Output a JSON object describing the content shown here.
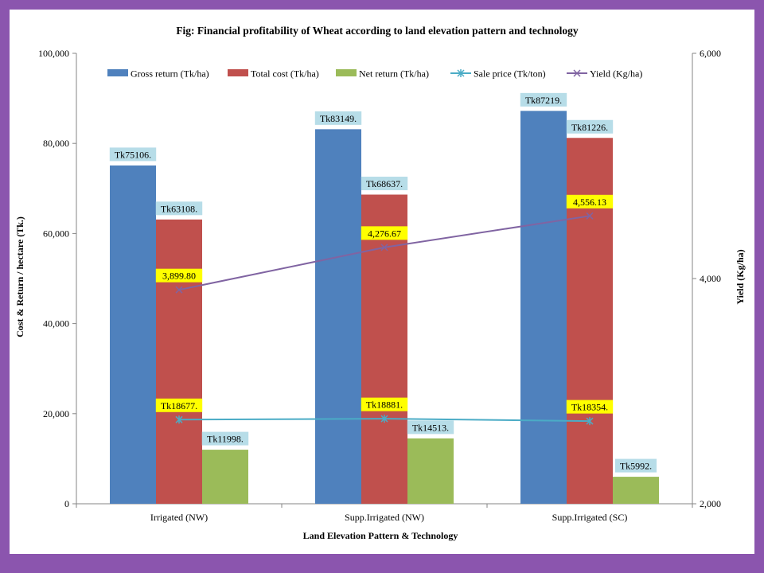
{
  "chart_data": {
    "type": "bar",
    "title": "Fig: Financial profitability of Wheat according to land elevation pattern and technology",
    "xlabel": "Land Elevation Pattern & Technology",
    "ylabel": "Cost & Return / hectare (Tk.)",
    "y2label": "Yield (Kg/ha)",
    "categories": [
      "Irrigated (NW)",
      "Supp.Irrigated (NW)",
      "Supp.Irrigated (SC)"
    ],
    "ylim": [
      0,
      100000
    ],
    "y2lim": [
      2000,
      6000
    ],
    "yticks": [
      "0",
      "20,000",
      "40,000",
      "60,000",
      "80,000",
      "100,000"
    ],
    "y2ticks": [
      "2,000",
      "4,000",
      "6,000"
    ],
    "legend_position": "top",
    "series": [
      {
        "name": "Gross return (Tk/ha)",
        "kind": "bar",
        "axis": "left",
        "color": "#4f81bd",
        "values": [
          75106,
          83149,
          87219
        ],
        "labels": [
          "Tk75106.",
          "Tk83149.",
          "Tk87219."
        ]
      },
      {
        "name": "Total cost (Tk/ha)",
        "kind": "bar",
        "axis": "left",
        "color": "#c0504d",
        "values": [
          63108,
          68637,
          81226
        ],
        "labels": [
          "Tk63108.",
          "Tk68637.",
          "Tk81226."
        ]
      },
      {
        "name": "Net return (Tk/ha)",
        "kind": "bar",
        "axis": "left",
        "color": "#9bbb59",
        "values": [
          11998,
          14513,
          5992
        ],
        "labels": [
          "Tk11998.",
          "Tk14513.",
          "Tk5992."
        ]
      },
      {
        "name": "Sale price (Tk/ton)",
        "kind": "line",
        "axis": "left",
        "color": "#4bacc6",
        "values": [
          18677,
          18881,
          18354
        ],
        "labels": [
          "Tk18677.",
          "Tk18881.",
          "Tk18354."
        ]
      },
      {
        "name": "Yield (Kg/ha)",
        "kind": "line",
        "axis": "right",
        "color": "#8064a2",
        "values": [
          3899.8,
          4276.67,
          4556.13
        ],
        "labels": [
          "3,899.80",
          "4,276.67",
          "4,556.13"
        ]
      }
    ],
    "colors": {
      "frame": "#8b55ae",
      "label_box_blue": "#b7dde8",
      "label_box_yellow": "#ffff00"
    }
  }
}
